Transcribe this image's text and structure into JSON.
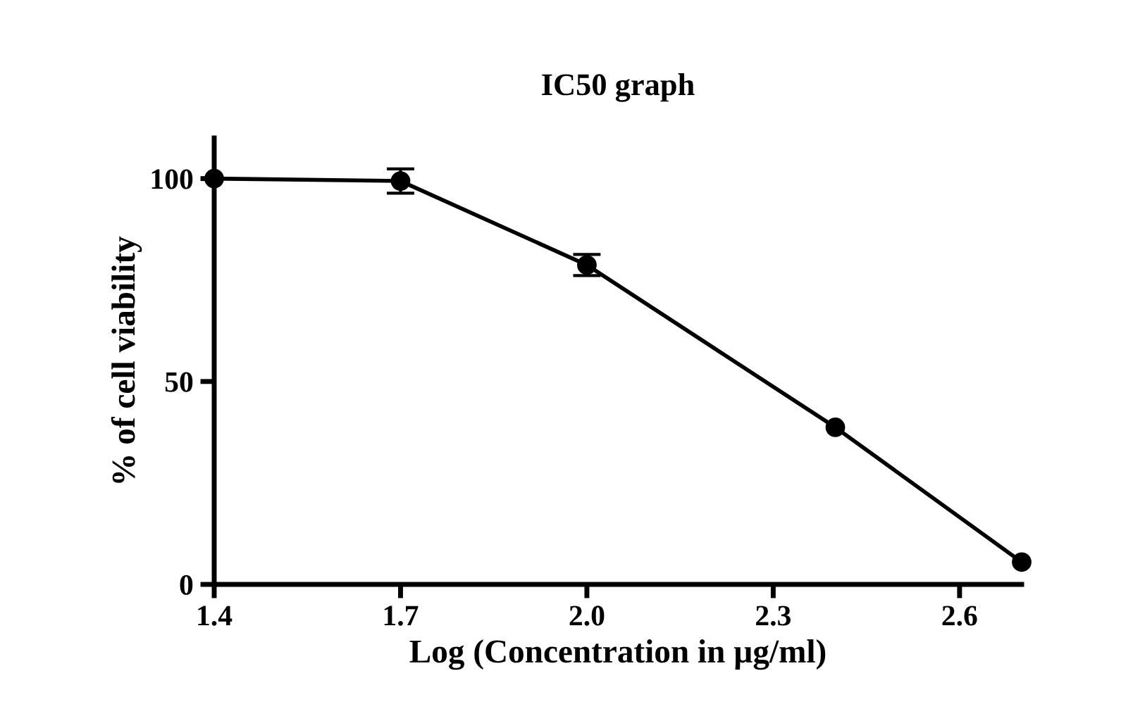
{
  "chart_data": {
    "type": "line",
    "title": "IC50 graph",
    "xlabel": "Log (Concentration in µg/ml)",
    "ylabel": "% of cell viability",
    "x": [
      1.4,
      1.7,
      2.0,
      2.4,
      2.7
    ],
    "series": [
      {
        "color": "#000000",
        "values": [
          100,
          99.4,
          78.7,
          38.7,
          5.5
        ],
        "errors": [
          null,
          3,
          2.6,
          null,
          null
        ]
      }
    ],
    "xlim": [
      1.4,
      2.7
    ],
    "xticks": [
      {
        "value": 1.4,
        "label": "1.4"
      },
      {
        "value": 1.7,
        "label": "1.7"
      },
      {
        "value": 2.0,
        "label": "2.0"
      },
      {
        "value": 2.3,
        "label": "2.3"
      },
      {
        "value": 2.6,
        "label": "2.6"
      }
    ],
    "ylim": [
      0,
      110
    ],
    "yticks": [
      0,
      50,
      100
    ],
    "marker": "circle",
    "line_style": "solid",
    "grid": false,
    "legend": false
  }
}
